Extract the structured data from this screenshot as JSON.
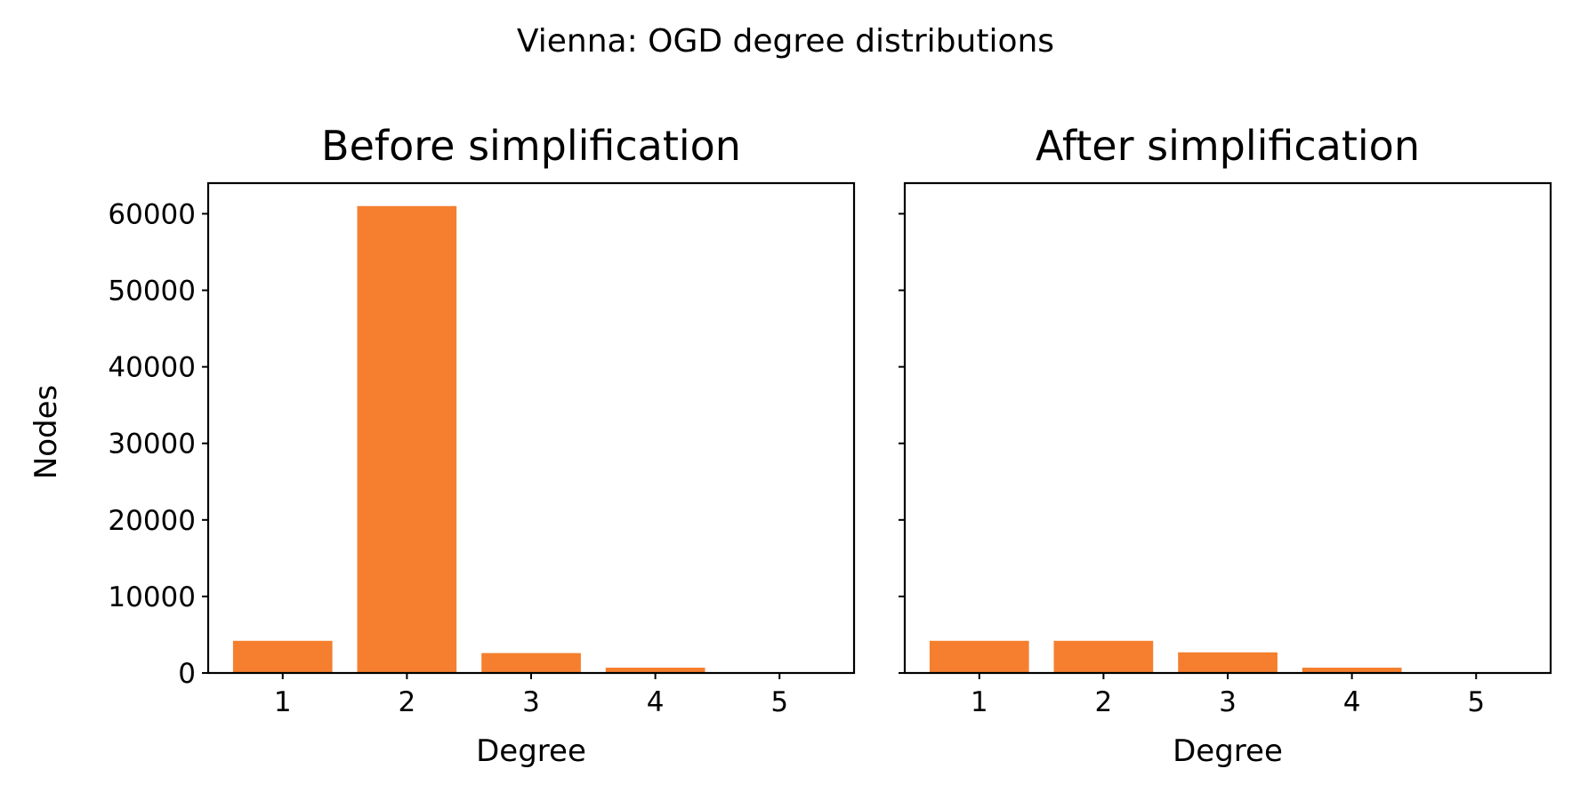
{
  "chart_data": {
    "title": "Vienna: OGD degree distributions",
    "colors": {
      "bar": "#f57f2e"
    },
    "subplots": [
      {
        "type": "bar",
        "title": "Before simplification",
        "xlabel": "Degree",
        "ylabel": "Nodes",
        "categories": [
          "1",
          "2",
          "3",
          "4",
          "5"
        ],
        "values": [
          4200,
          61000,
          2600,
          700,
          50
        ],
        "ylim": [
          0,
          64000
        ],
        "yticks": [
          0,
          10000,
          20000,
          30000,
          40000,
          50000,
          60000
        ],
        "ytick_labels": [
          "0",
          "10000",
          "20000",
          "30000",
          "40000",
          "50000",
          "60000"
        ]
      },
      {
        "type": "bar",
        "title": "After simplification",
        "xlabel": "Degree",
        "ylabel": "",
        "categories": [
          "1",
          "2",
          "3",
          "4",
          "5"
        ],
        "values": [
          4200,
          4200,
          2700,
          700,
          50
        ],
        "ylim": [
          0,
          64000
        ],
        "yticks": [
          0,
          10000,
          20000,
          30000,
          40000,
          50000,
          60000
        ],
        "ytick_labels": [],
        "sharey": true
      }
    ]
  }
}
